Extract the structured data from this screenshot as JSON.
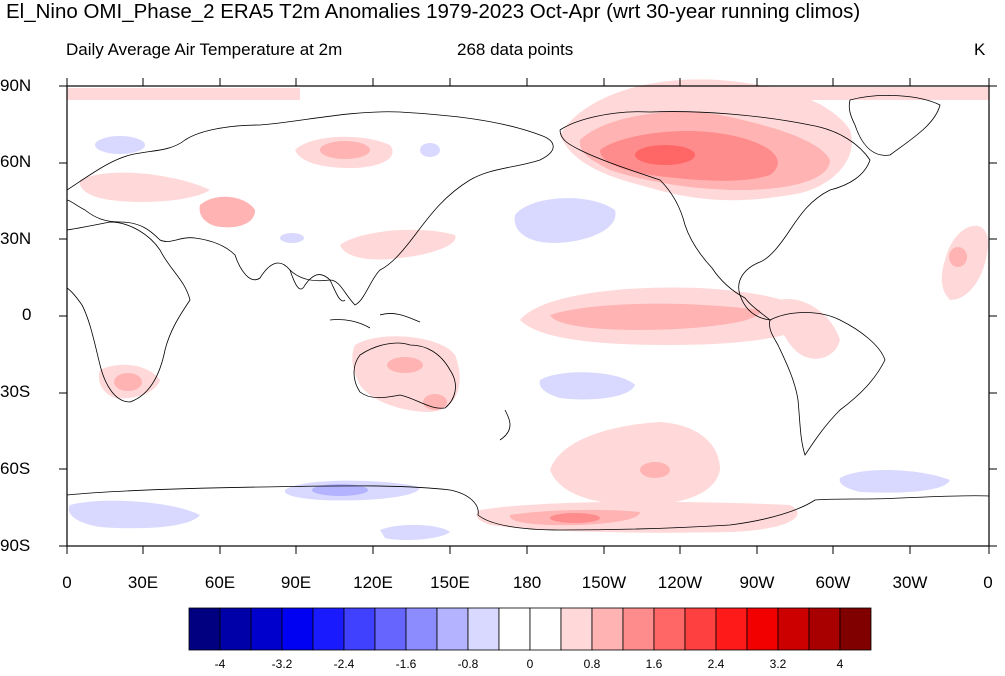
{
  "title": "El_Nino OMI_Phase_2 ERA5 T2m Anomalies 1979-2023 Oct-Apr (wrt 30-year running climos)",
  "subtitle_left": "Daily Average Air Temperature at 2m",
  "subtitle_center": "268 data points",
  "units": "K",
  "lat_labels": [
    "90N",
    "60N",
    "30N",
    "0",
    "30S",
    "60S",
    "90S"
  ],
  "lon_labels": [
    "0",
    "30E",
    "60E",
    "90E",
    "120E",
    "150E",
    "180",
    "150W",
    "120W",
    "90W",
    "60W",
    "30W",
    "0"
  ],
  "colorbar": {
    "colors": [
      "#000080",
      "#0000a8",
      "#0000cd",
      "#0000f2",
      "#1a1aff",
      "#4040ff",
      "#6666ff",
      "#8c8cff",
      "#b3b3ff",
      "#d9d9ff",
      "#ffffff",
      "#ffffff",
      "#ffd9d9",
      "#ffb3b3",
      "#ff8c8c",
      "#ff6666",
      "#ff4040",
      "#ff1a1a",
      "#f20000",
      "#cd0000",
      "#a80000",
      "#800000"
    ],
    "tick_labels": [
      "-4",
      "-3.2",
      "-2.4",
      "-1.6",
      "-0.8",
      "0",
      "0.8",
      "1.6",
      "2.4",
      "3.2",
      "4"
    ]
  }
}
